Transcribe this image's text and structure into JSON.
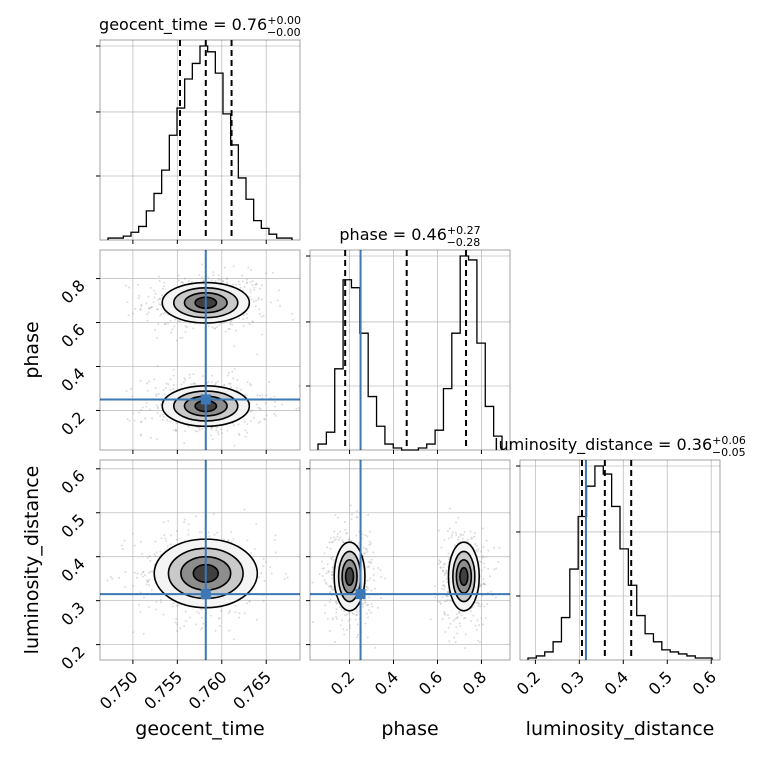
{
  "chart_data": {
    "type": "corner",
    "parameters": [
      {
        "name": "geocent_time",
        "axis_label": "geocent_time",
        "range": [
          0.7463,
          0.7688
        ],
        "ticks": [
          0.75,
          0.755,
          0.76,
          0.765
        ],
        "tick_labels": [
          "0.750",
          "0.755",
          "0.760",
          "0.765"
        ],
        "title_text": "geocent_time = 0.76",
        "title_sup": "+0.00",
        "title_sub": "−0.00",
        "quantiles": [
          0.7553,
          0.7582,
          0.7611
        ],
        "truth": 0.7582,
        "hist_heights": [
          0.01,
          0.01,
          0.02,
          0.04,
          0.07,
          0.15,
          0.24,
          0.36,
          0.54,
          0.68,
          0.83,
          0.91,
          1.0,
          0.97,
          0.86,
          0.65,
          0.49,
          0.32,
          0.21,
          0.1,
          0.06,
          0.03,
          0.01,
          0.01
        ]
      },
      {
        "name": "phase",
        "axis_label": "phase",
        "range": [
          0.02,
          0.93
        ],
        "ticks": [
          0.2,
          0.4,
          0.6,
          0.8
        ],
        "tick_labels": [
          "0.2",
          "0.4",
          "0.6",
          "0.8"
        ],
        "title_text": "phase = 0.46",
        "title_sup": "+0.27",
        "title_sub": "−0.28",
        "quantiles": [
          0.18,
          0.46,
          0.73
        ],
        "truth": 0.25,
        "hist_heights": [
          0.03,
          0.09,
          0.41,
          0.86,
          0.82,
          0.59,
          0.27,
          0.12,
          0.03,
          0.01,
          0.0,
          0.0,
          0.01,
          0.03,
          0.1,
          0.31,
          0.59,
          0.98,
          0.96,
          0.54,
          0.22,
          0.07
        ]
      },
      {
        "name": "luminosity_distance",
        "axis_label": "luminosity_distance",
        "range": [
          0.165,
          0.62
        ],
        "ticks": [
          0.2,
          0.3,
          0.4,
          0.5,
          0.6
        ],
        "tick_labels": [
          "0.2",
          "0.3",
          "0.4",
          "0.5",
          "0.6"
        ],
        "title_text": "luminosity_distance = 0.36",
        "title_sup": "+0.06",
        "title_sub": "−0.05",
        "quantiles": [
          0.306,
          0.358,
          0.418
        ],
        "truth": 0.315,
        "hist_heights": [
          0.01,
          0.02,
          0.04,
          0.09,
          0.21,
          0.45,
          0.71,
          0.86,
          0.96,
          0.92,
          0.76,
          0.55,
          0.37,
          0.22,
          0.13,
          0.09,
          0.05,
          0.04,
          0.03,
          0.02,
          0.01,
          0.01
        ]
      }
    ],
    "pairs": [
      {
        "x": "geocent_time",
        "y": "phase",
        "modes": [
          {
            "cx": 0.7582,
            "cy": 0.69,
            "sx": 0.0028,
            "sy": 0.055,
            "levels": [
              [
                0.0012,
                0.025
              ],
              [
                0.0024,
                0.045
              ],
              [
                0.0036,
                0.068
              ],
              [
                0.0049,
                0.092
              ]
            ]
          },
          {
            "cx": 0.7582,
            "cy": 0.22,
            "sx": 0.0028,
            "sy": 0.055,
            "levels": [
              [
                0.0012,
                0.025
              ],
              [
                0.0024,
                0.045
              ],
              [
                0.0036,
                0.068
              ],
              [
                0.0049,
                0.092
              ]
            ]
          }
        ]
      },
      {
        "x": "geocent_time",
        "y": "luminosity_distance",
        "modes": [
          {
            "cx": 0.7582,
            "cy": 0.362,
            "sx": 0.0032,
            "sy": 0.045,
            "levels": [
              [
                0.0014,
                0.02
              ],
              [
                0.0028,
                0.038
              ],
              [
                0.0042,
                0.057
              ],
              [
                0.0058,
                0.078
              ]
            ]
          }
        ]
      },
      {
        "x": "phase",
        "y": "luminosity_distance",
        "modes": [
          {
            "cx": 0.2,
            "cy": 0.355,
            "sx": 0.045,
            "sy": 0.045,
            "levels": [
              [
                0.018,
                0.02
              ],
              [
                0.034,
                0.038
              ],
              [
                0.05,
                0.057
              ],
              [
                0.07,
                0.078
              ]
            ]
          },
          {
            "cx": 0.72,
            "cy": 0.355,
            "sx": 0.045,
            "sy": 0.045,
            "levels": [
              [
                0.018,
                0.02
              ],
              [
                0.034,
                0.038
              ],
              [
                0.05,
                0.057
              ],
              [
                0.07,
                0.078
              ]
            ]
          }
        ]
      }
    ],
    "grid": true,
    "truth_color": "#3b78b5",
    "contour_color": "#000000",
    "hist_color": "#000000",
    "quantile_style": "dashed"
  }
}
